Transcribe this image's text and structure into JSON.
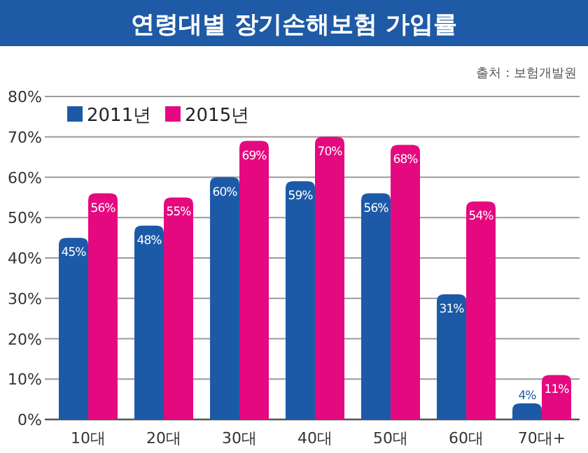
{
  "chart_data": {
    "type": "bar",
    "title": "연령대별 장기손해보험 가입률",
    "annotations": [
      "출처 : 보험개발원"
    ],
    "categories": [
      "10대",
      "20대",
      "30대",
      "40대",
      "50대",
      "60대",
      "70대+"
    ],
    "series": [
      {
        "name": "2011년",
        "color": "#1c5aa8",
        "values": [
          45,
          48,
          60,
          59,
          56,
          31,
          4
        ],
        "value_labels": [
          "45%",
          "48%",
          "60%",
          "59%",
          "56%",
          "31%",
          "4%"
        ]
      },
      {
        "name": "2015년",
        "color": "#e5097f",
        "values": [
          56,
          55,
          69,
          70,
          68,
          54,
          11
        ],
        "value_labels": [
          "56%",
          "55%",
          "69%",
          "70%",
          "68%",
          "54%",
          "11%"
        ]
      }
    ],
    "ylim": [
      0,
      80
    ],
    "yticks": [
      {
        "value": 0,
        "label": "0%"
      },
      {
        "value": 10,
        "label": "10%"
      },
      {
        "value": 20,
        "label": "20%"
      },
      {
        "value": 30,
        "label": "30%"
      },
      {
        "value": 40,
        "label": "40%"
      },
      {
        "value": 50,
        "label": "50%"
      },
      {
        "value": 60,
        "label": "60%"
      },
      {
        "value": 70,
        "label": "70%"
      },
      {
        "value": 80,
        "label": "80%"
      }
    ],
    "grid": "y",
    "legend": "top left"
  }
}
